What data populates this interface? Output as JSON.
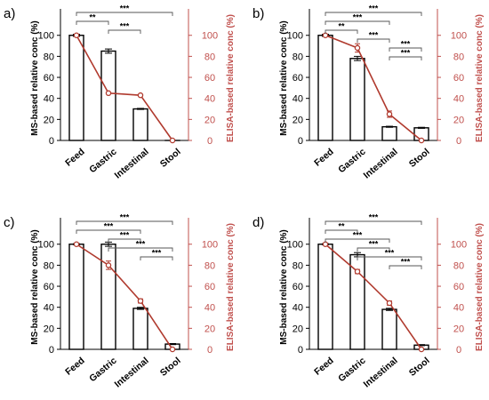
{
  "colors": {
    "bar_fill": "#ffffff",
    "bar_stroke": "#000000",
    "line": "#b03a2e",
    "right_axis": "#c0504d"
  },
  "chart_data": [
    {
      "panel": "a)",
      "type": "bar+line",
      "categories": [
        "Feed",
        "Gastric",
        "Intestinal",
        "Stool"
      ],
      "ylabel": "MS-based relative conc (%)",
      "y2label": "ELISA-based relative conc (%)",
      "ylim": [
        0,
        115
      ],
      "y2lim": [
        0,
        115
      ],
      "yticks": [
        0,
        20,
        40,
        60,
        80,
        100
      ],
      "y2ticks": [
        0,
        20,
        40,
        60,
        80,
        100
      ],
      "bars": [
        100,
        85,
        30,
        0
      ],
      "bar_err": [
        1,
        2,
        0.5,
        0
      ],
      "line": [
        100,
        45,
        43,
        0
      ],
      "line_err": [
        0,
        0,
        0,
        0
      ],
      "brackets": [
        {
          "from": 0,
          "to": 3,
          "label": "***"
        },
        {
          "from": 0,
          "to": 1,
          "label": "**"
        },
        {
          "from": 1,
          "to": 2,
          "label": "***"
        }
      ]
    },
    {
      "panel": "b)",
      "type": "bar+line",
      "categories": [
        "Feed",
        "Gastric",
        "Intestinal",
        "Stool"
      ],
      "ylabel": "MS-based relative conc (%)",
      "y2label": "ELISA-based relative conc (%)",
      "ylim": [
        0,
        115
      ],
      "y2lim": [
        0,
        115
      ],
      "yticks": [
        0,
        20,
        40,
        60,
        80,
        100
      ],
      "y2ticks": [
        0,
        20,
        40,
        60,
        80,
        100
      ],
      "bars": [
        100,
        78,
        13,
        12
      ],
      "bar_err": [
        1,
        2,
        0.5,
        0.5
      ],
      "line": [
        100,
        88,
        25,
        0
      ],
      "line_err": [
        0,
        4,
        3,
        0
      ],
      "brackets": [
        {
          "from": 0,
          "to": 3,
          "label": "***"
        },
        {
          "from": 0,
          "to": 2,
          "label": "***"
        },
        {
          "from": 0,
          "to": 1,
          "label": "**"
        },
        {
          "from": 1,
          "to": 2,
          "label": "***"
        },
        {
          "from": 2,
          "to": 3,
          "label": "***"
        },
        {
          "from": 2,
          "to": 3,
          "label": "***"
        }
      ]
    },
    {
      "panel": "c)",
      "type": "bar+line",
      "categories": [
        "Feed",
        "Gastric",
        "Intestinal",
        "Stool"
      ],
      "ylabel": "MS-based relative conc (%)",
      "y2label": "ELISA-based relative conc (%)",
      "ylim": [
        0,
        115
      ],
      "y2lim": [
        0,
        115
      ],
      "yticks": [
        0,
        20,
        40,
        60,
        80,
        100
      ],
      "y2ticks": [
        0,
        20,
        40,
        60,
        80,
        100
      ],
      "bars": [
        100,
        100,
        39,
        5
      ],
      "bar_err": [
        0.5,
        2,
        1,
        0.5
      ],
      "line": [
        100,
        80,
        46,
        0
      ],
      "line_err": [
        0,
        4,
        2,
        0
      ],
      "brackets": [
        {
          "from": 0,
          "to": 3,
          "label": "***"
        },
        {
          "from": 0,
          "to": 2,
          "label": "***"
        },
        {
          "from": 1,
          "to": 2,
          "label": "***"
        },
        {
          "from": 1,
          "to": 3,
          "label": "***"
        },
        {
          "from": 2,
          "to": 3,
          "label": "***"
        }
      ]
    },
    {
      "panel": "d)",
      "type": "bar+line",
      "categories": [
        "Feed",
        "Gastric",
        "Intestinal",
        "Stool"
      ],
      "ylabel": "MS-based relative conc (%)",
      "y2label": "ELISA-based relative conc (%)",
      "ylim": [
        0,
        115
      ],
      "y2lim": [
        0,
        115
      ],
      "yticks": [
        0,
        20,
        40,
        60,
        80,
        100
      ],
      "y2ticks": [
        0,
        20,
        40,
        60,
        80,
        100
      ],
      "bars": [
        100,
        90,
        38,
        4
      ],
      "bar_err": [
        0.5,
        2,
        1,
        0.5
      ],
      "line": [
        100,
        74,
        44,
        0
      ],
      "line_err": [
        0,
        2,
        2,
        0
      ],
      "brackets": [
        {
          "from": 0,
          "to": 3,
          "label": "***"
        },
        {
          "from": 0,
          "to": 1,
          "label": "**"
        },
        {
          "from": 0,
          "to": 2,
          "label": "***"
        },
        {
          "from": 1,
          "to": 2,
          "label": "***"
        },
        {
          "from": 1,
          "to": 3,
          "label": "***"
        },
        {
          "from": 2,
          "to": 3,
          "label": "***"
        }
      ]
    }
  ]
}
